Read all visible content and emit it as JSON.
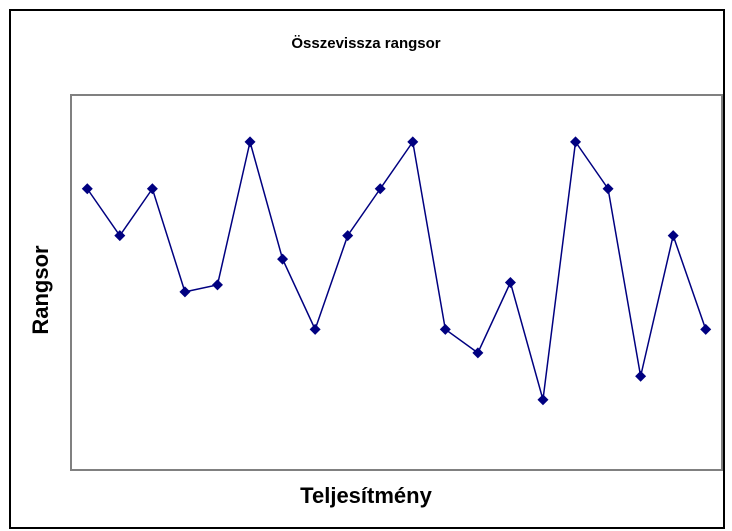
{
  "chart_data": {
    "type": "line",
    "title": "Összevissza rangsor",
    "xlabel": "Teljesítmény",
    "ylabel": "Rangsor",
    "categories": [
      null,
      null,
      null,
      null,
      null,
      null,
      null,
      null,
      null,
      null,
      null,
      null,
      null,
      null,
      null,
      null,
      null,
      null,
      null,
      null
    ],
    "series": [
      {
        "color": "#000080",
        "values": [
          12,
          10,
          12,
          7.6,
          7.9,
          14,
          9,
          6,
          10,
          12,
          14,
          6,
          5,
          8,
          3,
          14,
          12,
          4,
          10,
          6
        ]
      }
    ],
    "ylim": [
      0,
      16
    ]
  }
}
